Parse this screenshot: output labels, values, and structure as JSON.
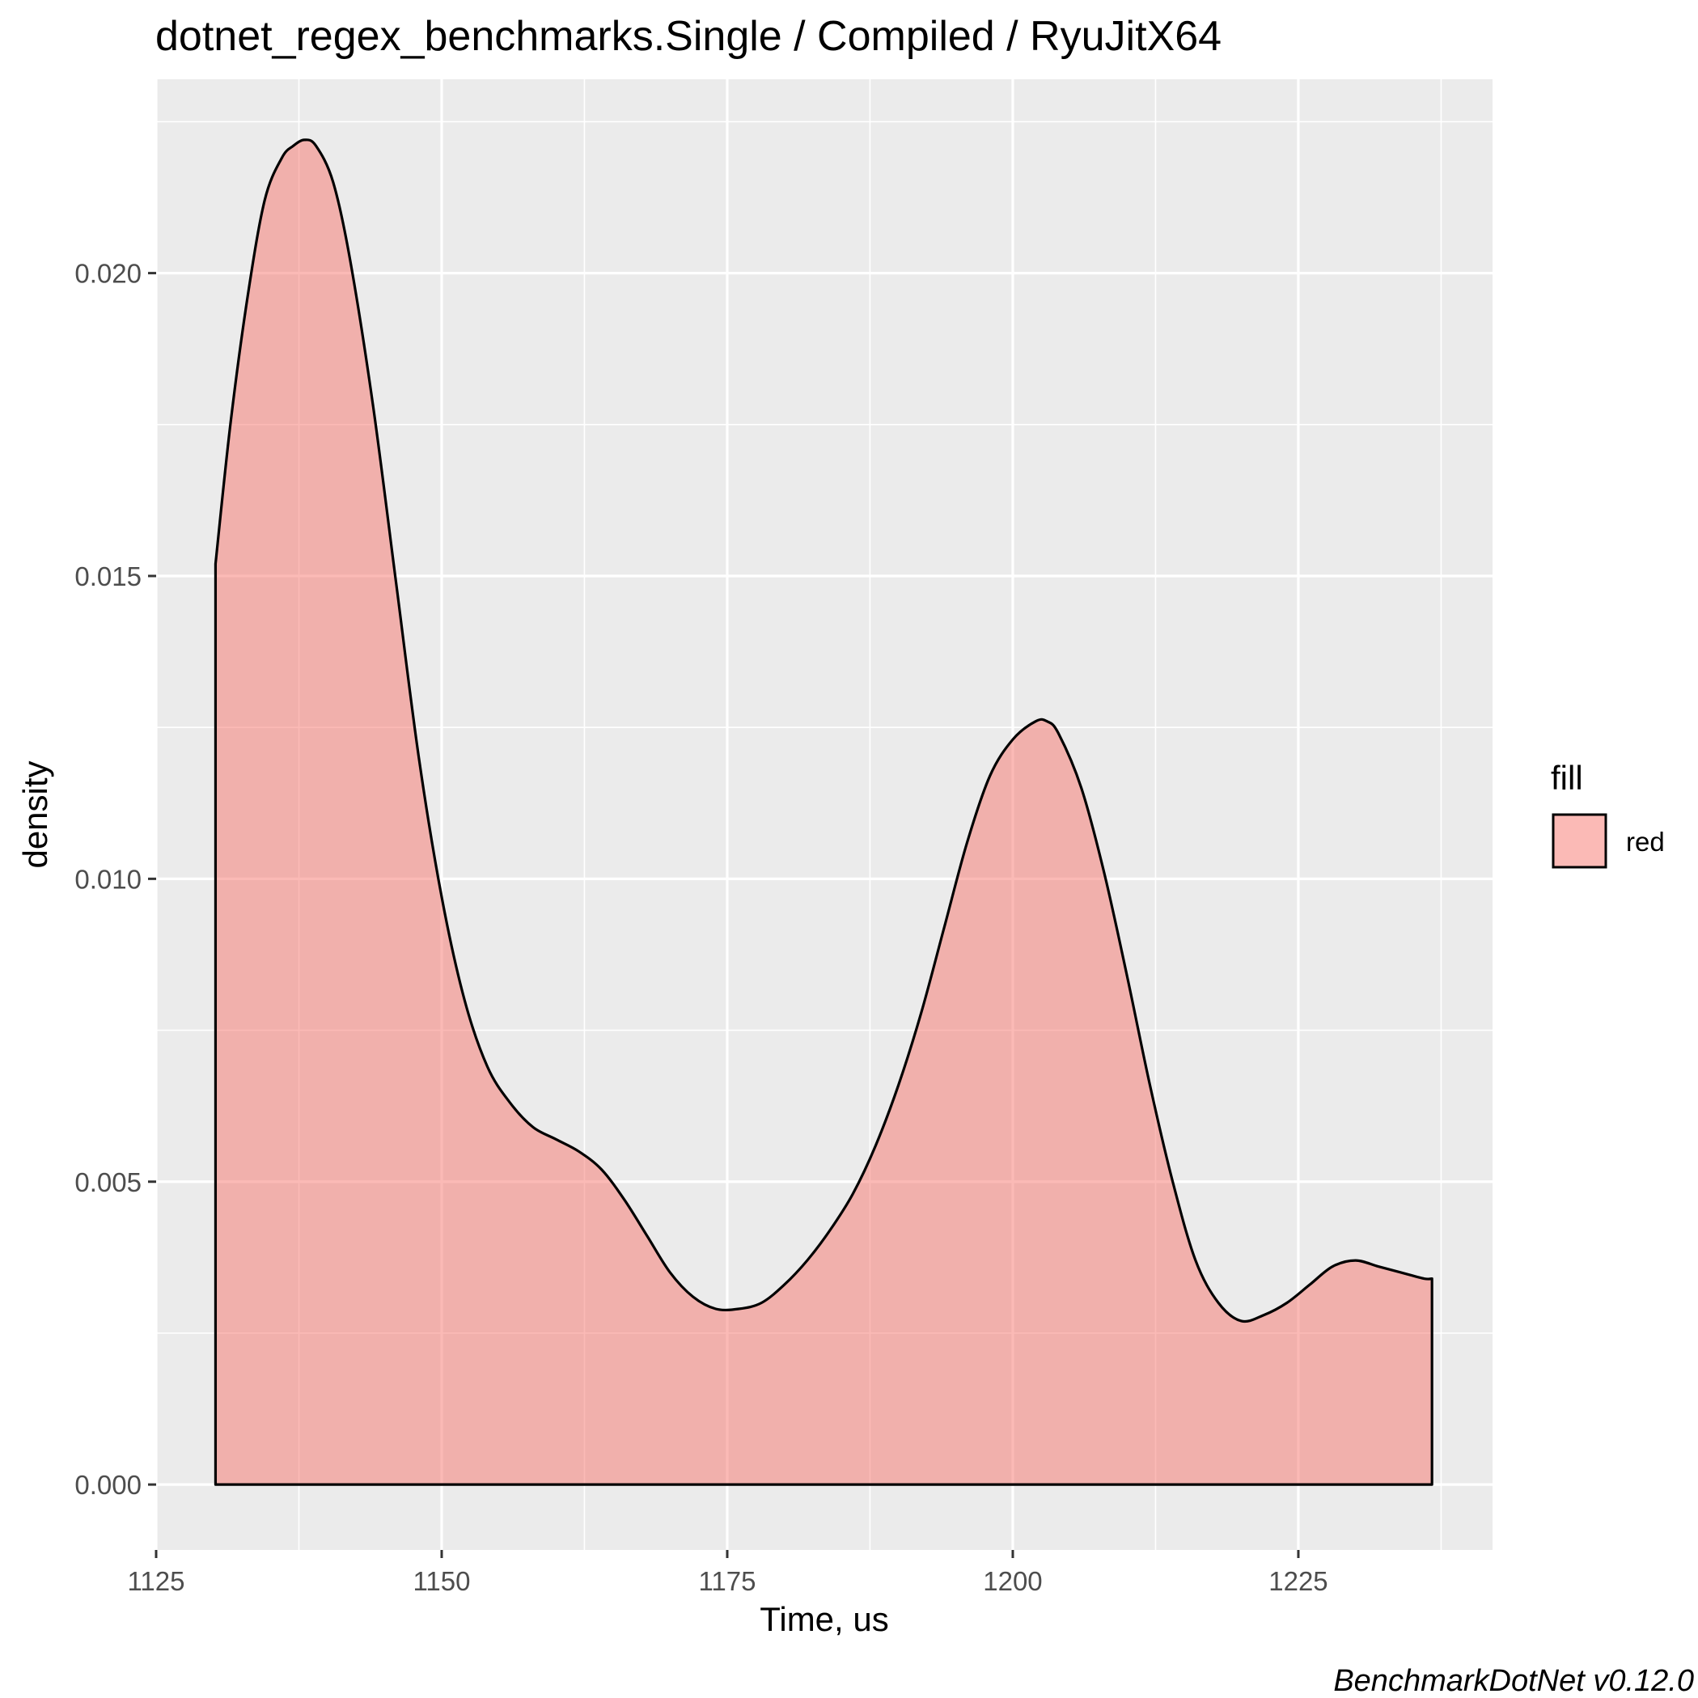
{
  "chart_data": {
    "type": "area",
    "title": "dotnet_regex_benchmarks.Single / Compiled / RyuJitX64",
    "xlabel": "Time, us",
    "ylabel": "density",
    "xlim": [
      1125,
      1242
    ],
    "ylim": [
      -0.00108,
      0.0232
    ],
    "x_ticks": [
      1125,
      1150,
      1175,
      1200,
      1225
    ],
    "x_tick_labels": [
      "1125",
      "1150",
      "1175",
      "1200",
      "1225"
    ],
    "y_ticks": [
      0.0,
      0.005,
      0.01,
      0.015,
      0.02
    ],
    "y_tick_labels": [
      "0.000",
      "0.005",
      "0.010",
      "0.015",
      "0.020"
    ],
    "grid": true,
    "legend": {
      "title": "fill",
      "position": "right",
      "entries": [
        {
          "label": "red",
          "color": "#F8766D"
        }
      ]
    },
    "caption": "BenchmarkDotNet v0.12.0",
    "series": [
      {
        "fill": "#F8766D",
        "fill_opacity": 0.5,
        "line_color": "#000000",
        "x": [
          1130.2,
          1131.5,
          1133.0,
          1134.5,
          1136.0,
          1137.0,
          1138.0,
          1139.0,
          1140.5,
          1142.0,
          1144.0,
          1146.0,
          1148.0,
          1150.0,
          1152.0,
          1154.0,
          1156.0,
          1158.0,
          1160.0,
          1162.0,
          1164.0,
          1166.0,
          1168.0,
          1170.0,
          1172.0,
          1174.0,
          1176.0,
          1178.0,
          1180.0,
          1182.0,
          1184.0,
          1186.0,
          1188.0,
          1190.0,
          1192.0,
          1194.0,
          1196.0,
          1198.0,
          1200.0,
          1202.0,
          1203.0,
          1204.0,
          1206.0,
          1208.0,
          1210.0,
          1212.0,
          1214.0,
          1216.0,
          1218.0,
          1220.0,
          1222.0,
          1224.0,
          1226.0,
          1228.0,
          1230.0,
          1232.0,
          1234.0,
          1236.0,
          1236.7
        ],
        "y": [
          0.0152,
          0.0175,
          0.0196,
          0.0212,
          0.0219,
          0.0221,
          0.0222,
          0.0221,
          0.0215,
          0.0202,
          0.0178,
          0.0149,
          0.012,
          0.0097,
          0.008,
          0.0069,
          0.0063,
          0.0059,
          0.0057,
          0.0055,
          0.0052,
          0.0047,
          0.0041,
          0.0035,
          0.0031,
          0.0029,
          0.0029,
          0.003,
          0.0033,
          0.0037,
          0.0042,
          0.0048,
          0.0056,
          0.0066,
          0.0078,
          0.0092,
          0.0106,
          0.0117,
          0.0123,
          0.0126,
          0.0126,
          0.0124,
          0.0115,
          0.0101,
          0.0084,
          0.0066,
          0.005,
          0.0037,
          0.003,
          0.0027,
          0.0028,
          0.003,
          0.0033,
          0.0036,
          0.0037,
          0.0036,
          0.0035,
          0.0034,
          0.0034
        ]
      }
    ]
  }
}
